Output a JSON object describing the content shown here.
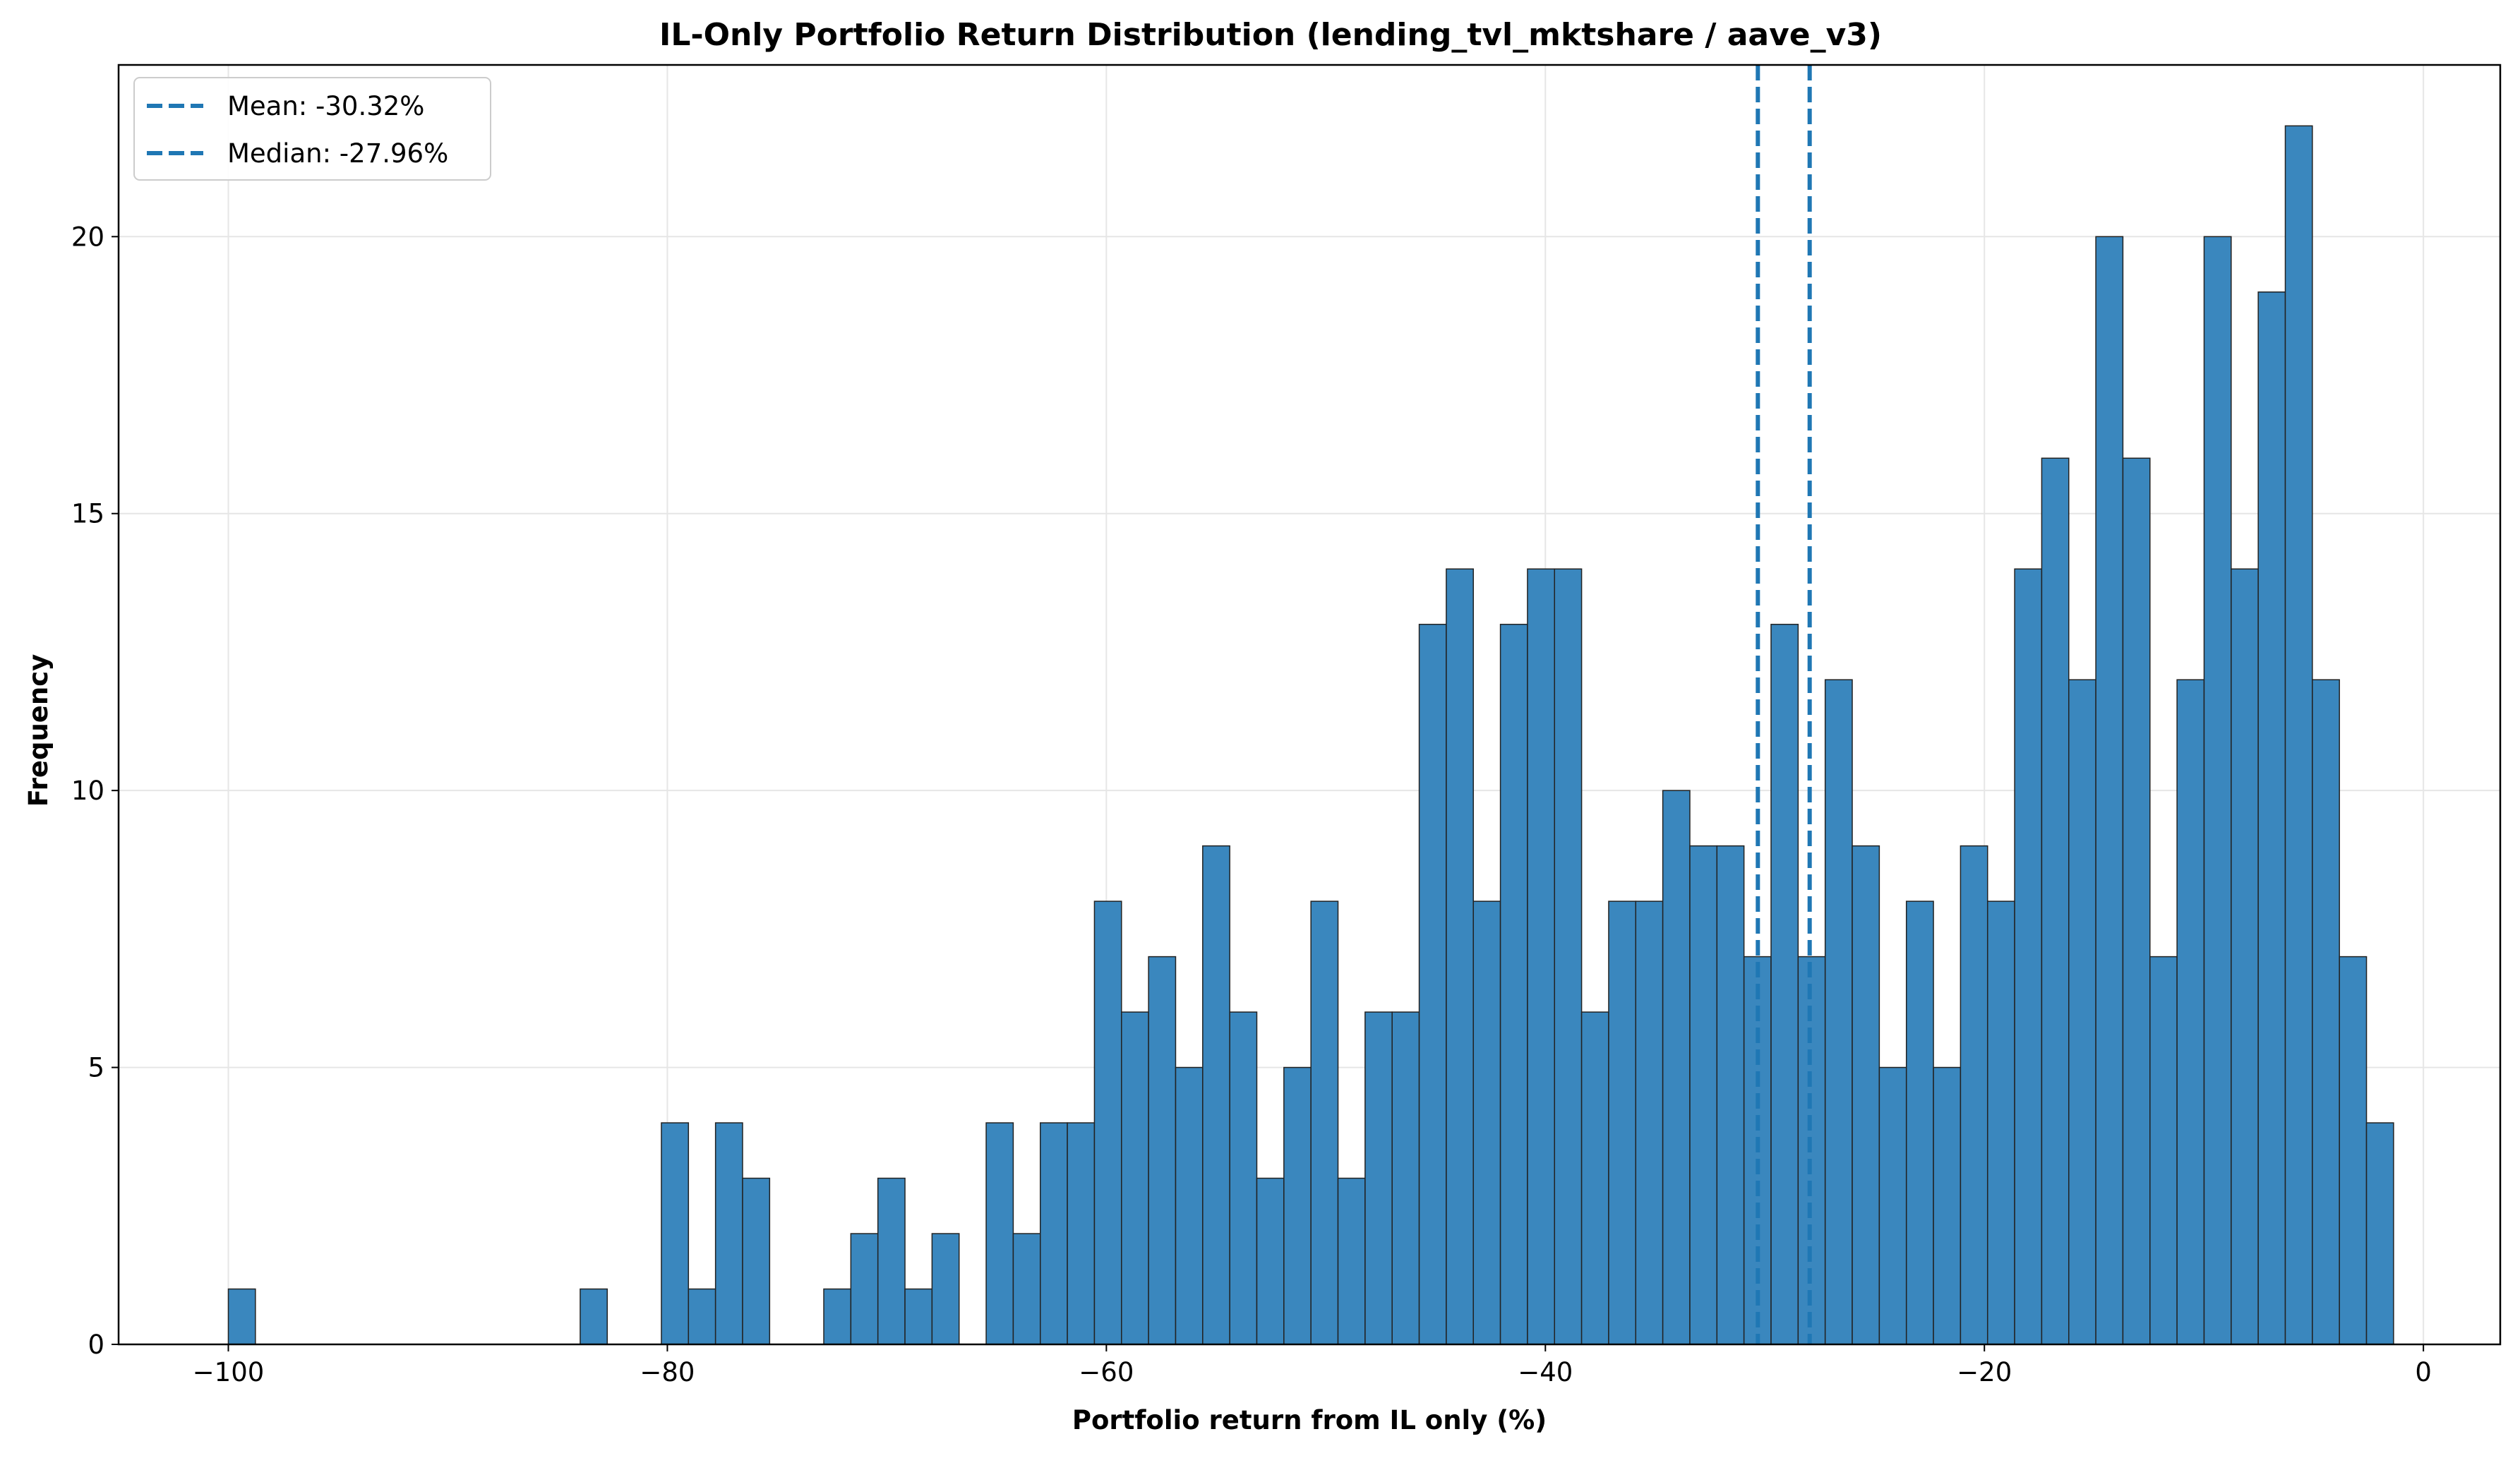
{
  "chart_data": {
    "type": "bar",
    "title": "IL-Only Portfolio Return Distribution (lending_tvl_mktshare / aave_v3)",
    "xlabel": "Portfolio return from IL only (%)",
    "ylabel": "Frequency",
    "xlim": [
      -105,
      3.5
    ],
    "ylim": [
      0,
      23.1
    ],
    "xticks": [
      -100,
      -80,
      -60,
      -40,
      -20,
      0
    ],
    "xtick_labels": [
      "−100",
      "−80",
      "−60",
      "−40",
      "−20",
      "0"
    ],
    "yticks": [
      0,
      5,
      10,
      15,
      20
    ],
    "ytick_labels": [
      "0",
      "5",
      "10",
      "15",
      "20"
    ],
    "grid": true,
    "bar_color": "#3a87be",
    "bin_start": -100.0,
    "bin_width": 1.233,
    "values": [
      1,
      0,
      0,
      0,
      0,
      0,
      0,
      0,
      0,
      0,
      0,
      0,
      0,
      1,
      0,
      0,
      4,
      1,
      4,
      3,
      0,
      0,
      1,
      2,
      3,
      1,
      2,
      0,
      4,
      2,
      4,
      4,
      8,
      6,
      7,
      5,
      9,
      6,
      3,
      5,
      8,
      3,
      6,
      6,
      13,
      14,
      8,
      13,
      14,
      14,
      6,
      8,
      8,
      10,
      9,
      9,
      7,
      13,
      7,
      12,
      9,
      5,
      8,
      5,
      9,
      8,
      14,
      16,
      12,
      20,
      16,
      7,
      12,
      20,
      14,
      19,
      22,
      12,
      7,
      4
    ],
    "lines": [
      {
        "name": "Mean: -30.32%",
        "x": -30.32,
        "color": "#1f77b4",
        "style": "dashed"
      },
      {
        "name": "Median: -27.96%",
        "x": -27.96,
        "color": "#1f77b4",
        "style": "dashed"
      }
    ],
    "legend_position": "top-left"
  }
}
